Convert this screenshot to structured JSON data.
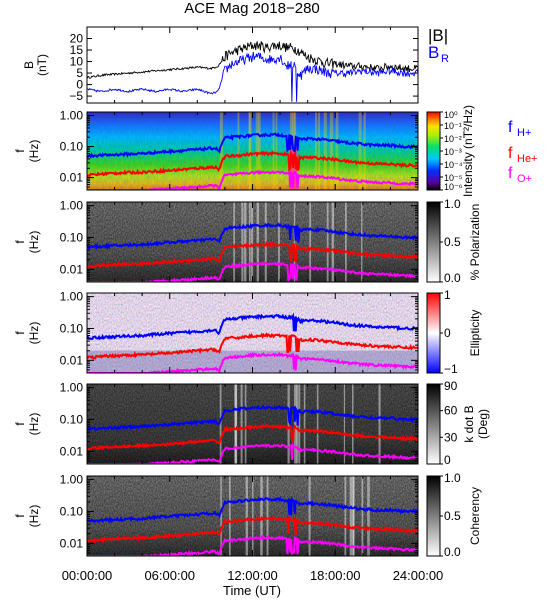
{
  "title": "ACE Mag 2018−280",
  "xlabel": "Time (UT)",
  "x_ticks": [
    "00:00:00",
    "06:00:00",
    "12:00:00",
    "18:00:00",
    "24:00:00"
  ],
  "colors": {
    "B": "#000000",
    "BR": "#0000ff",
    "fH": "#0000ff",
    "fHe": "#ff0000",
    "fO": "#ff00ff"
  },
  "chart_data": [
    {
      "type": "line",
      "panel": "field",
      "ylabel": [
        "B",
        "(nT)"
      ],
      "ylim": [
        -8,
        25
      ],
      "y_ticks": [
        "20",
        "15",
        "10",
        "5",
        "0",
        "−5"
      ],
      "y_tick_values": [
        20,
        15,
        10,
        5,
        0,
        -5
      ],
      "x_unit": "hours",
      "legend": {
        "B": "|B|",
        "BR_main": "B",
        "BR_sub": "R"
      },
      "series": [
        {
          "key": "B",
          "x": [
            0,
            1,
            2,
            3,
            4,
            5,
            6,
            7,
            8,
            9,
            9.5,
            10,
            10.5,
            11,
            11.5,
            12,
            12.5,
            13,
            13.5,
            14,
            14.5,
            15,
            15.5,
            16,
            16.5,
            17,
            17.5,
            18,
            19,
            20,
            21,
            22,
            23,
            24
          ],
          "values": [
            3,
            4,
            4.5,
            5,
            5.5,
            6,
            6.5,
            7,
            7.5,
            7,
            8,
            12,
            14,
            15,
            16,
            17,
            17,
            16,
            17,
            17,
            16,
            16,
            14,
            12,
            11,
            10,
            9,
            9,
            8,
            8,
            7,
            8,
            7,
            7
          ]
        },
        {
          "key": "BR",
          "x": [
            0,
            1,
            2,
            3,
            4,
            5,
            6,
            7,
            8,
            9,
            9.5,
            10,
            10.5,
            11,
            11.5,
            12,
            12.5,
            13,
            13.5,
            14,
            14.5,
            15,
            15.5,
            16,
            16.5,
            17,
            17.5,
            18,
            19,
            20,
            21,
            22,
            23,
            24
          ],
          "values": [
            -2,
            -3,
            -2,
            -3,
            -2,
            -3,
            -2,
            -3,
            -2,
            -4,
            -3,
            6,
            9,
            10,
            11,
            12,
            12,
            11,
            11,
            12,
            8,
            9,
            4,
            7,
            7,
            6,
            5,
            5,
            5,
            6,
            5,
            6,
            5,
            5
          ]
        }
      ]
    },
    {
      "type": "heatmap",
      "panel": "power",
      "ylabel": [
        "f",
        "(Hz)"
      ],
      "colorbar": {
        "label": "Intensity (nT²/Hz)",
        "ticks": [
          "10⁰",
          "10⁻¹",
          "10⁻²",
          "10⁻³",
          "10⁻⁴",
          "10⁻⁵",
          "10⁻⁶"
        ]
      },
      "legend": [
        {
          "main": "f",
          "sub": "H+",
          "key": "fH"
        },
        {
          "main": "f",
          "sub": "He+",
          "key": "fHe"
        },
        {
          "main": "f",
          "sub": "O+",
          "key": "fO"
        }
      ]
    },
    {
      "type": "heatmap",
      "panel": "polarization",
      "ylabel": [
        "f",
        "(Hz)"
      ],
      "colorbar": {
        "label": "% Polarization",
        "ticks": [
          "1.0",
          "0.5",
          "0.0"
        ]
      }
    },
    {
      "type": "heatmap",
      "panel": "ellipticity",
      "ylabel": [
        "f",
        "(Hz)"
      ],
      "colorbar": {
        "label": "Ellipticity",
        "ticks": [
          "1",
          "0",
          "−1"
        ]
      }
    },
    {
      "type": "heatmap",
      "panel": "kdotb",
      "ylabel": [
        "f",
        "(Hz)"
      ],
      "colorbar": {
        "label": "k dot B (Deg)",
        "label_lines": [
          "k dot B",
          "(Deg)"
        ],
        "ticks": [
          "90",
          "60",
          "30",
          "0"
        ]
      }
    },
    {
      "type": "heatmap",
      "panel": "coherency",
      "ylabel": [
        "f",
        "(Hz)"
      ],
      "colorbar": {
        "label": "Coherency",
        "ticks": [
          "1.0",
          "0.5",
          "0.0"
        ]
      }
    }
  ],
  "freq_axis": {
    "ticks": [
      "1.00",
      "0.10",
      "0.01"
    ],
    "tick_values": [
      1.0,
      0.1,
      0.01
    ],
    "ylim": [
      0.004,
      1.3
    ],
    "scale": "log"
  },
  "gyrofrequencies_hz": {
    "x": [
      0,
      2,
      4,
      6,
      8,
      9.3,
      9.6,
      10,
      11,
      12,
      13,
      14,
      14.5,
      15,
      15.5,
      16,
      17,
      18,
      19,
      20,
      21,
      22,
      23,
      24
    ],
    "fH": [
      0.05,
      0.055,
      0.06,
      0.07,
      0.08,
      0.09,
      0.07,
      0.19,
      0.21,
      0.23,
      0.24,
      0.24,
      0.22,
      0.23,
      0.17,
      0.18,
      0.17,
      0.15,
      0.13,
      0.12,
      0.11,
      0.11,
      0.1,
      0.1
    ],
    "fHe": [
      0.012,
      0.014,
      0.015,
      0.017,
      0.02,
      0.022,
      0.018,
      0.048,
      0.052,
      0.058,
      0.06,
      0.06,
      0.055,
      0.058,
      0.043,
      0.045,
      0.042,
      0.038,
      0.033,
      0.03,
      0.028,
      0.027,
      0.025,
      0.025
    ],
    "fO": [
      0.0034,
      0.0036,
      0.0038,
      0.0044,
      0.005,
      0.0056,
      0.0046,
      0.012,
      0.013,
      0.0145,
      0.015,
      0.015,
      0.0138,
      0.0145,
      0.011,
      0.0112,
      0.0105,
      0.0095,
      0.0082,
      0.0075,
      0.007,
      0.0068,
      0.0063,
      0.0063
    ]
  }
}
